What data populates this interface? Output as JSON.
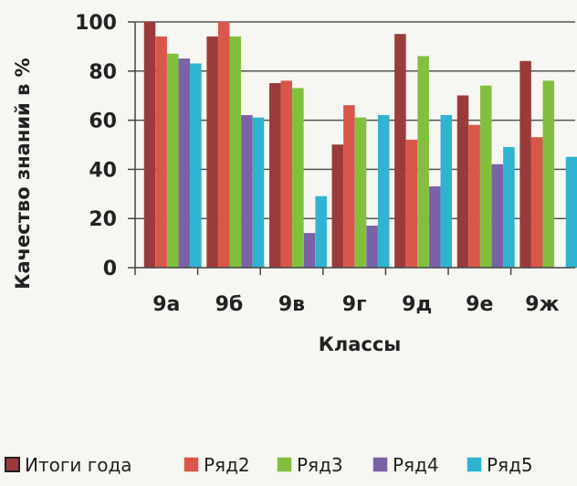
{
  "chart_data": {
    "type": "bar",
    "xlabel": "Классы",
    "ylabel": "Качество знаний в %",
    "ylim": [
      0,
      100
    ],
    "yticks": [
      0,
      20,
      40,
      60,
      80,
      100
    ],
    "categories": [
      "9а",
      "9б",
      "9в",
      "9г",
      "9д",
      "9е",
      "9ж"
    ],
    "grid": true,
    "legend_position": "bottom",
    "series": [
      {
        "name": "Итоги года",
        "color": "#9b3a3a",
        "values": [
          100,
          94,
          75,
          50,
          95,
          70,
          84
        ]
      },
      {
        "name": "Ряд2",
        "color": "#d9564b",
        "values": [
          94,
          100,
          76,
          66,
          52,
          58,
          53
        ]
      },
      {
        "name": "Ряд3",
        "color": "#82bf3f",
        "values": [
          87,
          94,
          73,
          61,
          86,
          74,
          76
        ]
      },
      {
        "name": "Ряд4",
        "color": "#7a62a6",
        "values": [
          85,
          62,
          14,
          17,
          33,
          42,
          0
        ]
      },
      {
        "name": "Ряд5",
        "color": "#2fb3d1",
        "values": [
          83,
          61,
          29,
          62,
          62,
          49,
          45
        ]
      }
    ]
  }
}
